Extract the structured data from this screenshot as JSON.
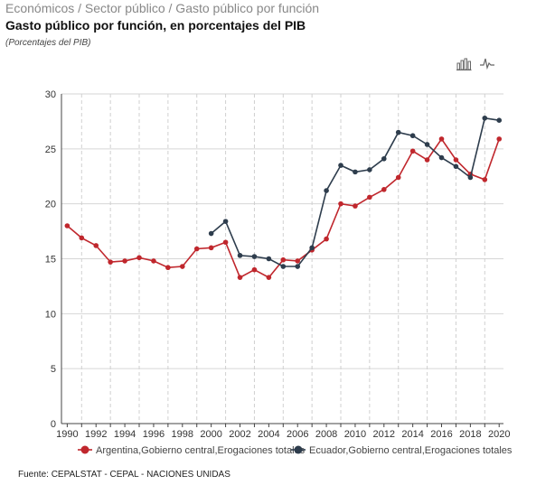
{
  "header": {
    "breadcrumb": "Económicos / Sector público / Gasto público por función",
    "title": "Gasto público por función, en porcentajes del PIB",
    "subtitle": "(Porcentajes del PIB)"
  },
  "toolbar": {
    "bar_icon": "bar-chart-icon",
    "line_icon": "line-chart-icon"
  },
  "footer": {
    "source": "Fuente: CEPALSTAT - CEPAL - NACIONES UNIDAS"
  },
  "chart_data": {
    "type": "line",
    "title": "",
    "xlabel": "",
    "ylabel": "",
    "xlim": [
      1990,
      2020
    ],
    "ylim": [
      0,
      30
    ],
    "yticks": [
      0,
      5,
      10,
      15,
      20,
      25,
      30
    ],
    "xticks": [
      1990,
      1992,
      1994,
      1996,
      1998,
      2000,
      2002,
      2004,
      2006,
      2008,
      2010,
      2012,
      2014,
      2016,
      2018,
      2020
    ],
    "grid": true,
    "legend_position": "bottom",
    "series": [
      {
        "name": "Argentina,Gobierno central,Erogaciones totales",
        "color": "#c0272d",
        "x": [
          1990,
          1991,
          1992,
          1993,
          1994,
          1995,
          1996,
          1997,
          1998,
          1999,
          2000,
          2001,
          2002,
          2003,
          2004,
          2005,
          2006,
          2007,
          2008,
          2009,
          2010,
          2011,
          2012,
          2013,
          2014,
          2015,
          2016,
          2017,
          2018,
          2019,
          2020
        ],
        "values": [
          18.0,
          16.9,
          16.2,
          14.7,
          14.8,
          15.1,
          14.8,
          14.2,
          14.3,
          15.9,
          16.0,
          16.5,
          13.3,
          14.0,
          13.3,
          14.9,
          14.8,
          15.8,
          16.8,
          20.0,
          19.8,
          20.6,
          21.3,
          22.4,
          24.8,
          24.0,
          25.9,
          24.0,
          22.7,
          22.2,
          25.9
        ]
      },
      {
        "name": "Ecuador,Gobierno central,Erogaciones totales",
        "color": "#2e3d4d",
        "x": [
          2000,
          2001,
          2002,
          2003,
          2004,
          2005,
          2006,
          2007,
          2008,
          2009,
          2010,
          2011,
          2012,
          2013,
          2014,
          2015,
          2016,
          2017,
          2018,
          2019,
          2020
        ],
        "values": [
          17.3,
          18.4,
          15.3,
          15.2,
          15.0,
          14.3,
          14.3,
          16.0,
          21.2,
          23.5,
          22.9,
          23.1,
          24.1,
          26.5,
          26.2,
          25.4,
          24.2,
          23.4,
          22.4,
          27.8,
          27.6
        ]
      }
    ]
  }
}
